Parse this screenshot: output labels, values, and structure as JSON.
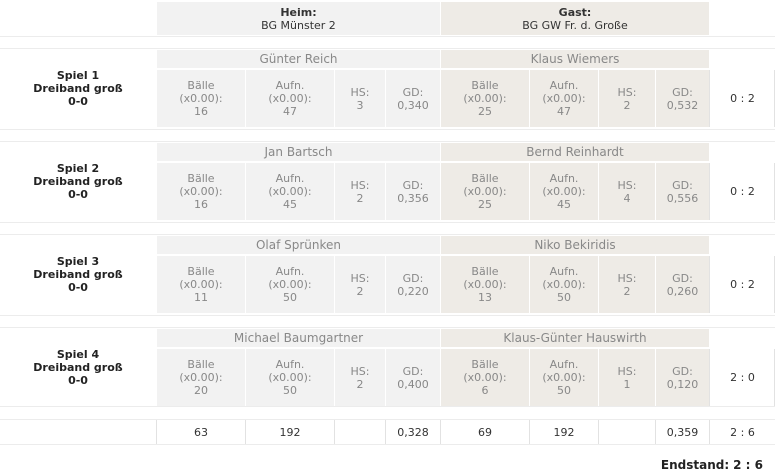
{
  "header": {
    "home_label": "Heim:",
    "home_team": "BG Münster 2",
    "guest_label": "Gast:",
    "guest_team": "BG GW Fr. d. Große"
  },
  "stat_labels": {
    "balls": "Bälle",
    "balls_sub": "(x0.00):",
    "innings": "Aufn.",
    "innings_sub": "(x0.00):",
    "hs": "HS:",
    "gd": "GD:"
  },
  "games": [
    {
      "title": "Spiel 1",
      "discipline": "Dreiband groß",
      "result": "0-0",
      "home": {
        "player": "Günter Reich",
        "balls": "16",
        "innings": "47",
        "hs": "3",
        "gd": "0,340"
      },
      "guest": {
        "player": "Klaus Wiemers",
        "balls": "25",
        "innings": "47",
        "hs": "2",
        "gd": "0,532"
      },
      "score": "0 : 2"
    },
    {
      "title": "Spiel 2",
      "discipline": "Dreiband groß",
      "result": "0-0",
      "home": {
        "player": "Jan Bartsch",
        "balls": "16",
        "innings": "45",
        "hs": "2",
        "gd": "0,356"
      },
      "guest": {
        "player": "Bernd Reinhardt",
        "balls": "25",
        "innings": "45",
        "hs": "4",
        "gd": "0,556"
      },
      "score": "0 : 2"
    },
    {
      "title": "Spiel 3",
      "discipline": "Dreiband groß",
      "result": "0-0",
      "home": {
        "player": "Olaf Sprünken",
        "balls": "11",
        "innings": "50",
        "hs": "2",
        "gd": "0,220"
      },
      "guest": {
        "player": "Niko Bekiridis",
        "balls": "13",
        "innings": "50",
        "hs": "2",
        "gd": "0,260"
      },
      "score": "0 : 2"
    },
    {
      "title": "Spiel 4",
      "discipline": "Dreiband groß",
      "result": "0-0",
      "home": {
        "player": "Michael Baumgartner",
        "balls": "20",
        "innings": "50",
        "hs": "2",
        "gd": "0,400"
      },
      "guest": {
        "player": "Klaus-Günter Hauswirth",
        "balls": "6",
        "innings": "50",
        "hs": "1",
        "gd": "0,120"
      },
      "score": "2 : 0"
    }
  ],
  "totals": {
    "home_balls": "63",
    "home_innings": "192",
    "home_gd": "0,328",
    "guest_balls": "69",
    "guest_innings": "192",
    "guest_gd": "0,359",
    "score": "2 : 6"
  },
  "final": {
    "label": "Endstand:",
    "score": "2 : 6"
  }
}
